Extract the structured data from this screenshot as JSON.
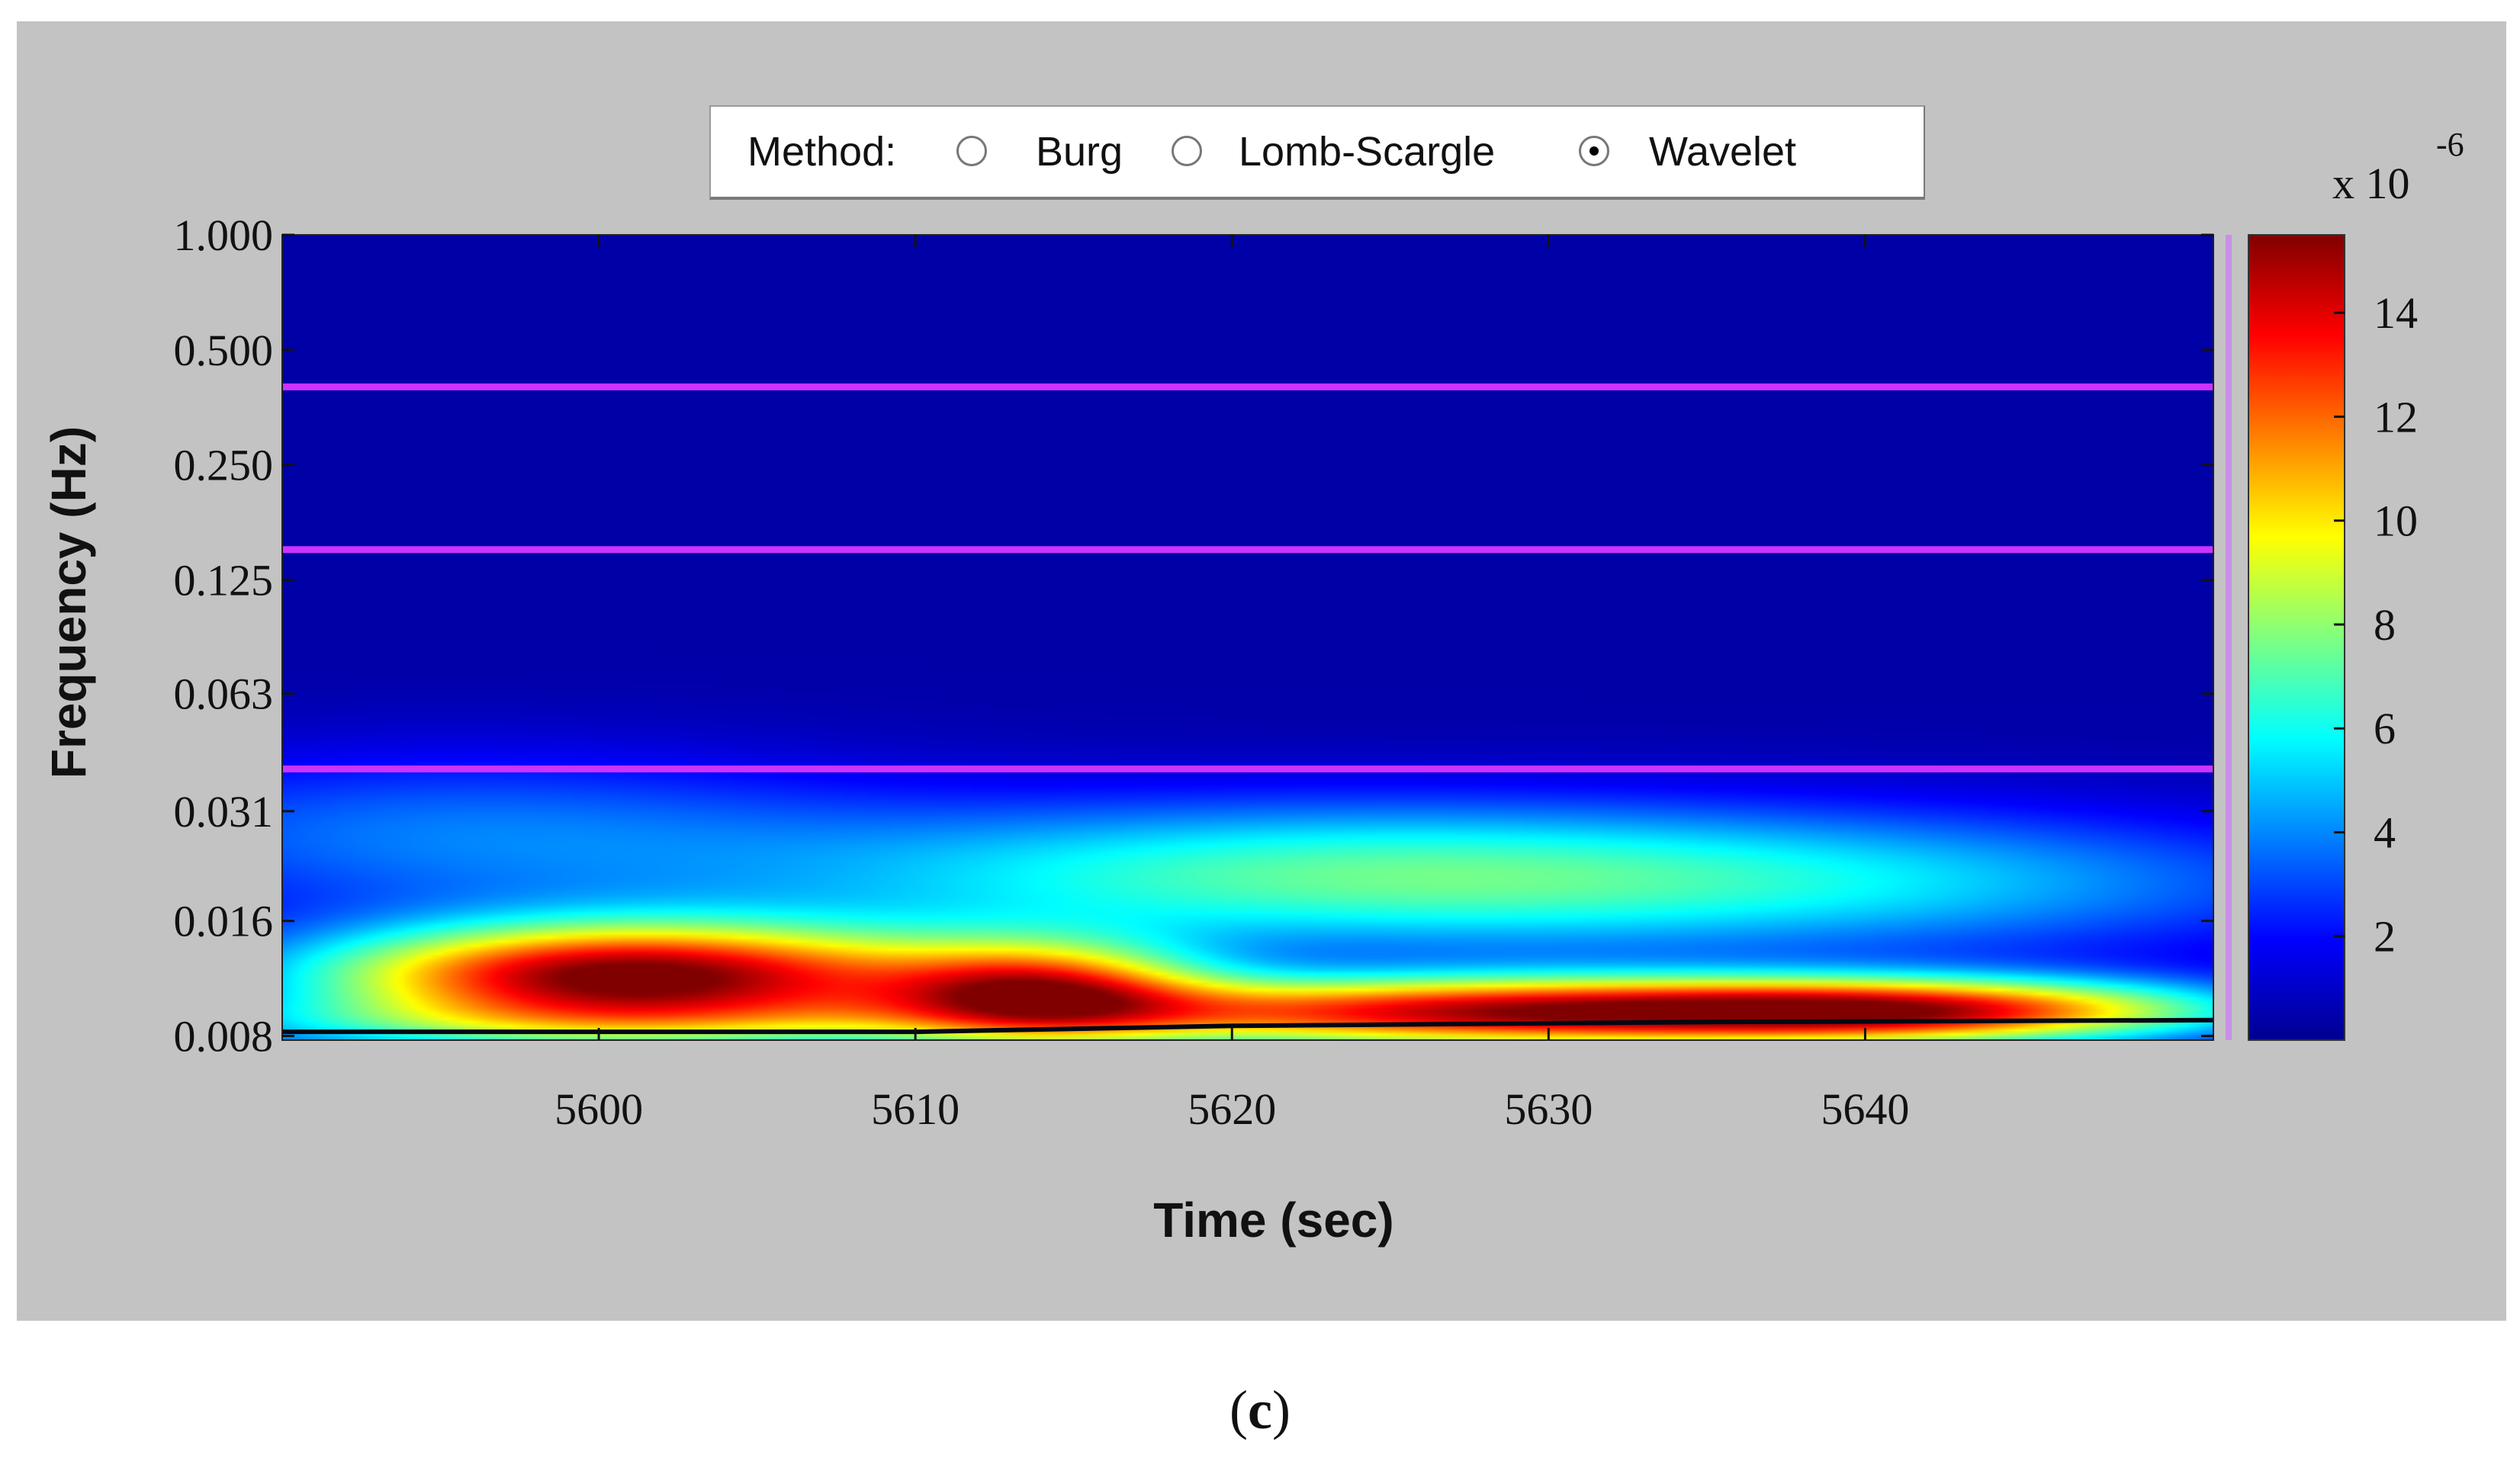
{
  "method_selector": {
    "label": "Method:",
    "options": [
      {
        "label": "Burg",
        "selected": false
      },
      {
        "label": "Lomb-Scargle",
        "selected": false
      },
      {
        "label": "Wavelet",
        "selected": true
      }
    ]
  },
  "caption": {
    "open": "(",
    "letter": "c",
    "close": ")"
  },
  "chart_data": {
    "type": "heatmap",
    "title": "",
    "xlabel": "Time (sec)",
    "ylabel": "Frequency (Hz)",
    "xlim": [
      5590,
      5651
    ],
    "x_ticks": [
      5600,
      5610,
      5620,
      5630,
      5640
    ],
    "y_scale": "log2",
    "ylim": [
      0.0078,
      1.0
    ],
    "y_ticks": [
      "0.008",
      "0.016",
      "0.031",
      "0.063",
      "0.125",
      "0.250",
      "0.500",
      "1.000"
    ],
    "y_tick_values": [
      0.008,
      0.016,
      0.031,
      0.063,
      0.125,
      0.25,
      0.5,
      1.0
    ],
    "band_lines_hz": [
      0.04,
      0.15,
      0.4
    ],
    "band_line_color": "#cc33ff",
    "colormap": "jet",
    "colorbar": {
      "multiplier": "x 10",
      "exponent": "-6",
      "range": [
        0,
        15.5
      ],
      "ticks": [
        2,
        4,
        6,
        8,
        10,
        12,
        14
      ]
    },
    "hotspots": [
      {
        "time": 5601,
        "freq": 0.0115,
        "power": 15.0,
        "time_spread": 7,
        "freq_spread_oct": 0.32
      },
      {
        "time": 5628,
        "freq": 0.0092,
        "power": 13.0,
        "time_spread": 10,
        "freq_spread_oct": 0.22
      },
      {
        "time": 5642,
        "freq": 0.0093,
        "power": 10.0,
        "time_spread": 7,
        "freq_spread_oct": 0.2
      },
      {
        "time": 5614,
        "freq": 0.0105,
        "power": 9.5,
        "time_spread": 3.5,
        "freq_spread_oct": 0.3
      },
      {
        "time": 5622,
        "freq": 0.021,
        "power": 5.5,
        "time_spread": 12,
        "freq_spread_oct": 0.45
      },
      {
        "time": 5640,
        "freq": 0.02,
        "power": 3.5,
        "time_spread": 12,
        "freq_spread_oct": 0.45
      },
      {
        "time": 5595,
        "freq": 0.027,
        "power": 3.0,
        "time_spread": 10,
        "freq_spread_oct": 0.5
      },
      {
        "time": 5599,
        "freq": 0.0085,
        "power": 4.0,
        "time_spread": 10,
        "freq_spread_oct": 0.18
      }
    ],
    "baseline_power": 0.6,
    "coi_curve": [
      {
        "time": 5590,
        "freq": 0.0082
      },
      {
        "time": 5610,
        "freq": 0.0082
      },
      {
        "time": 5620,
        "freq": 0.0085
      },
      {
        "time": 5635,
        "freq": 0.0087
      },
      {
        "time": 5651,
        "freq": 0.0088
      }
    ]
  }
}
